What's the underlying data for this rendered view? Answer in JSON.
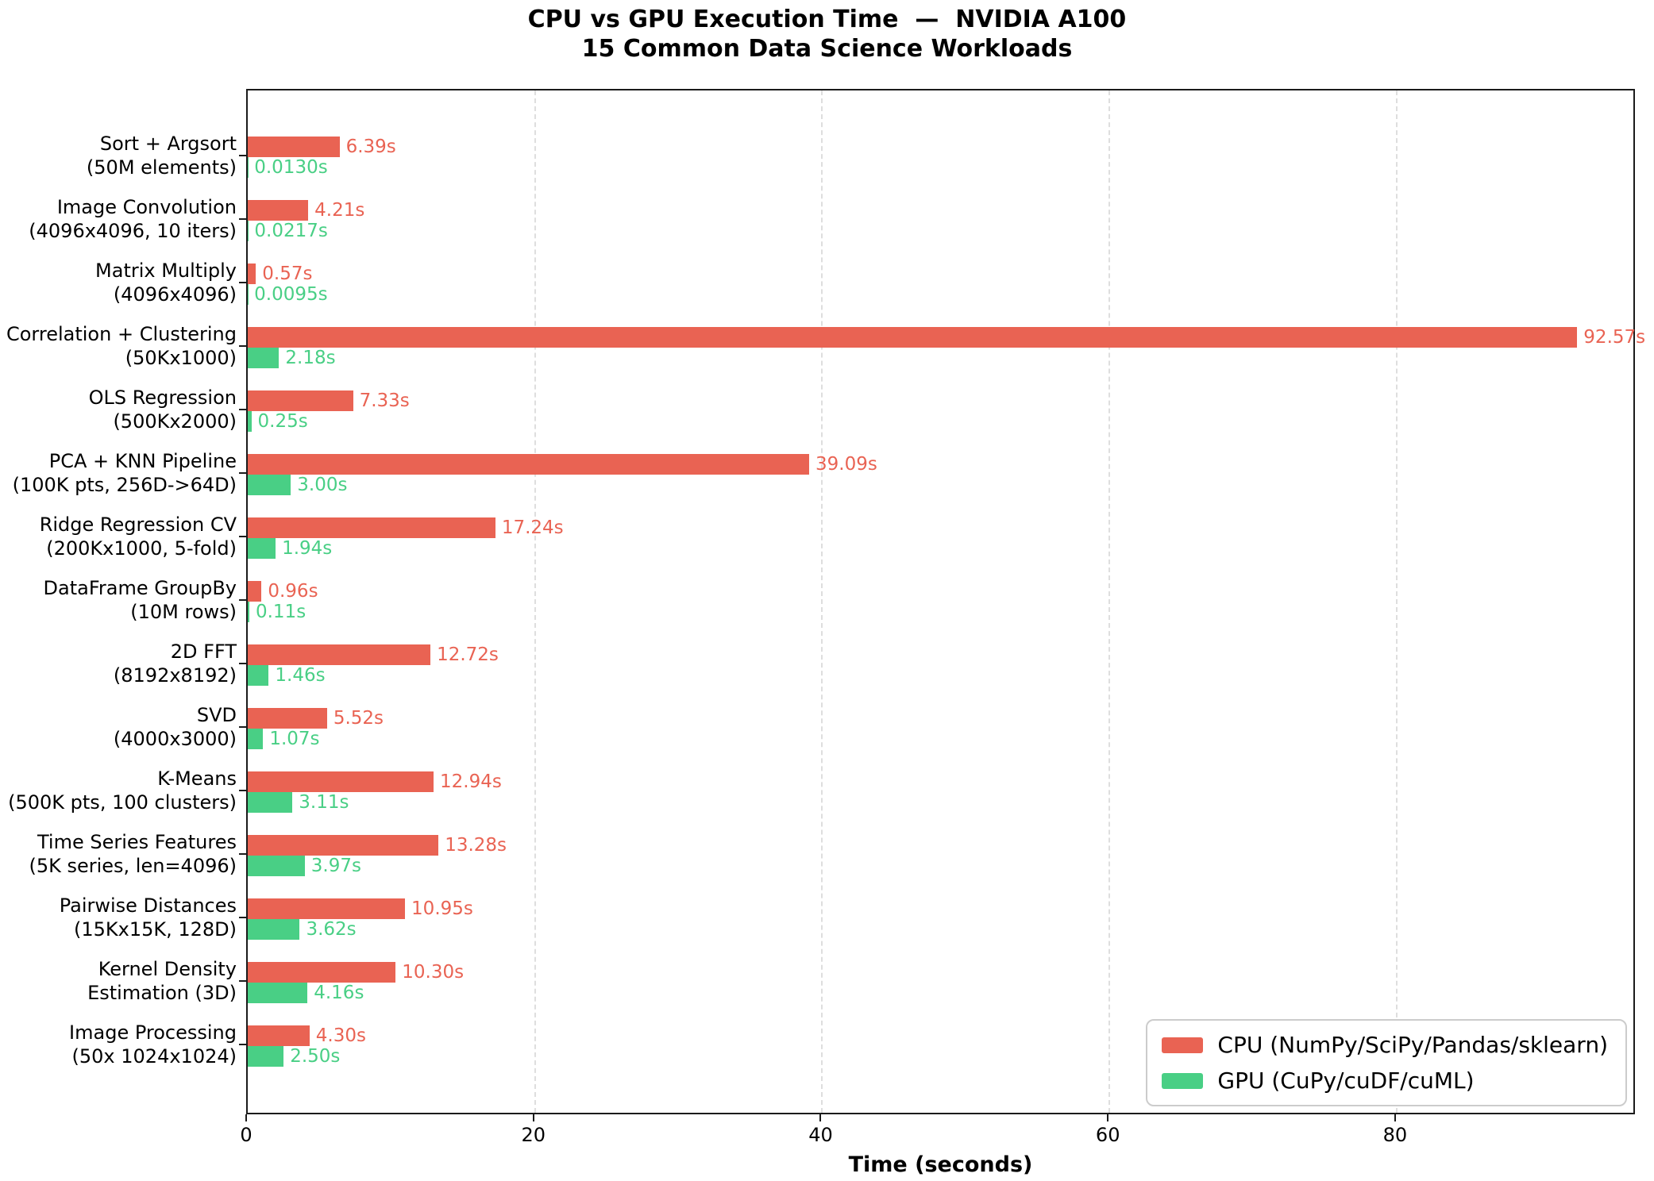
{
  "chart_data": {
    "type": "bar",
    "orientation": "horizontal",
    "title": "CPU vs GPU Execution Time  —  NVIDIA A100",
    "subtitle": "15 Common Data Science Workloads",
    "xlabel": "Time (seconds)",
    "x_ticks": [
      0,
      20,
      40,
      60,
      80
    ],
    "x_grid_values": [
      20,
      40,
      60,
      80
    ],
    "x_max": 96.7,
    "grid": "vertical dashed",
    "legend_position": "lower right",
    "colors": {
      "cpu": "#e96353",
      "gpu": "#49cf85",
      "grid": "#dedede",
      "axis": "#1b1b1b",
      "legend_border": "#cccccc"
    },
    "workloads": [
      {
        "name": "Sort + Argsort",
        "detail": "(50M elements)"
      },
      {
        "name": "Image Convolution",
        "detail": "(4096x4096, 10 iters)"
      },
      {
        "name": "Matrix Multiply",
        "detail": "(4096x4096)"
      },
      {
        "name": "Correlation + Clustering",
        "detail": "(50Kx1000)"
      },
      {
        "name": "OLS Regression",
        "detail": "(500Kx2000)"
      },
      {
        "name": "PCA + KNN Pipeline",
        "detail": "(100K pts, 256D->64D)"
      },
      {
        "name": "Ridge Regression CV",
        "detail": "(200Kx1000, 5-fold)"
      },
      {
        "name": "DataFrame GroupBy",
        "detail": "(10M rows)"
      },
      {
        "name": "2D FFT",
        "detail": "(8192x8192)"
      },
      {
        "name": "SVD",
        "detail": "(4000x3000)"
      },
      {
        "name": "K-Means",
        "detail": "(500K pts, 100 clusters)"
      },
      {
        "name": "Time Series Features",
        "detail": "(5K series, len=4096)"
      },
      {
        "name": "Pairwise Distances",
        "detail": "(15Kx15K, 128D)"
      },
      {
        "name": "Kernel Density",
        "detail": "Estimation (3D)"
      },
      {
        "name": "Image Processing",
        "detail": "(50x 1024x1024)"
      }
    ],
    "series": [
      {
        "name": "CPU (NumPy/SciPy/Pandas/sklearn)",
        "color_key": "cpu",
        "values": [
          6.39,
          4.21,
          0.57,
          92.57,
          7.33,
          39.09,
          17.24,
          0.96,
          12.72,
          5.52,
          12.94,
          13.28,
          10.95,
          10.3,
          4.3
        ],
        "labels": [
          "6.39s",
          "4.21s",
          "0.57s",
          "92.57s",
          "7.33s",
          "39.09s",
          "17.24s",
          "0.96s",
          "12.72s",
          "5.52s",
          "12.94s",
          "13.28s",
          "10.95s",
          "10.30s",
          "4.30s"
        ]
      },
      {
        "name": "GPU (CuPy/cuDF/cuML)",
        "color_key": "gpu",
        "values": [
          0.013,
          0.0217,
          0.0095,
          2.18,
          0.25,
          3.0,
          1.94,
          0.11,
          1.46,
          1.07,
          3.11,
          3.97,
          3.62,
          4.16,
          2.5
        ],
        "labels": [
          "0.0130s",
          "0.0217s",
          "0.0095s",
          "2.18s",
          "0.25s",
          "3.00s",
          "1.94s",
          "0.11s",
          "1.46s",
          "1.07s",
          "3.11s",
          "3.97s",
          "3.62s",
          "4.16s",
          "2.50s"
        ]
      }
    ]
  },
  "legend": {
    "cpu_label": "CPU (NumPy/SciPy/Pandas/sklearn)",
    "gpu_label": "GPU (CuPy/cuDF/cuML)"
  }
}
